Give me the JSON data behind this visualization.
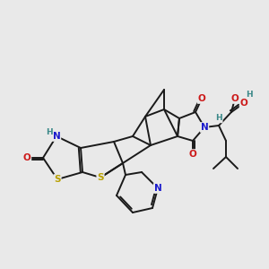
{
  "background_color": "#e9e9e9",
  "bond_color": "#1a1a1a",
  "bond_width": 1.4,
  "atom_colors": {
    "S": "#b8a000",
    "N": "#1a1acc",
    "O": "#cc1a1a",
    "H": "#3a8888",
    "C": "#1a1a1a"
  },
  "font_size": 7.5
}
